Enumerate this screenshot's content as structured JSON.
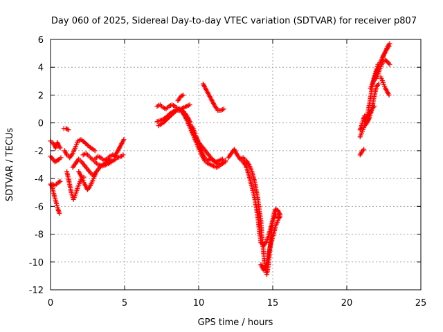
{
  "chart_data": {
    "type": "scatter",
    "title": "Day 060 of 2025, Sidereal Day-to-day VTEC variation (SDTVAR) for receiver p807",
    "xlabel": "GPS time / hours",
    "ylabel": "SDTVAR / TECUs",
    "xlim": [
      0,
      25
    ],
    "ylim": [
      -12,
      6
    ],
    "xticks": [
      "0",
      "5",
      "10",
      "15",
      "20",
      "25"
    ],
    "yticks": [
      "6",
      "4",
      "2",
      "0",
      "-2",
      "-4",
      "-6",
      "-8",
      "-10",
      "-12"
    ],
    "grid": true,
    "marker": "+",
    "color": "#ff0000",
    "tracks": [
      [
        [
          0.0,
          -1.3
        ],
        [
          0.2,
          -1.5
        ],
        [
          0.35,
          -1.8
        ],
        [
          0.45,
          -1.4
        ],
        [
          0.55,
          -1.6
        ],
        [
          0.65,
          -1.8
        ]
      ],
      [
        [
          0.0,
          -2.4
        ],
        [
          0.15,
          -2.6
        ],
        [
          0.3,
          -2.8
        ],
        [
          0.45,
          -2.7
        ],
        [
          0.6,
          -2.6
        ],
        [
          0.7,
          -2.5
        ]
      ],
      [
        [
          0.0,
          -4.4
        ],
        [
          0.1,
          -4.6
        ],
        [
          0.25,
          -5.2
        ],
        [
          0.4,
          -5.8
        ],
        [
          0.5,
          -6.2
        ],
        [
          0.6,
          -6.5
        ]
      ],
      [
        [
          0.1,
          -4.4
        ],
        [
          0.3,
          -4.5
        ],
        [
          0.5,
          -4.3
        ],
        [
          0.65,
          -4.2
        ]
      ],
      [
        [
          0.9,
          -0.4
        ],
        [
          1.05,
          -0.4
        ],
        [
          1.2,
          -0.5
        ]
      ],
      [
        [
          0.95,
          -2.0
        ],
        [
          1.1,
          -2.3
        ],
        [
          1.3,
          -2.5
        ],
        [
          1.5,
          -2.2
        ],
        [
          1.7,
          -1.7
        ],
        [
          1.85,
          -1.3
        ],
        [
          2.05,
          -1.2
        ],
        [
          2.3,
          -1.4
        ],
        [
          2.6,
          -1.7
        ],
        [
          3.0,
          -2.0
        ]
      ],
      [
        [
          1.1,
          -3.5
        ],
        [
          1.25,
          -4.2
        ],
        [
          1.4,
          -5.0
        ],
        [
          1.55,
          -5.5
        ],
        [
          1.7,
          -5.1
        ],
        [
          1.85,
          -4.6
        ],
        [
          2.05,
          -4.1
        ],
        [
          2.25,
          -3.9
        ]
      ],
      [
        [
          1.5,
          -3.2
        ],
        [
          1.7,
          -2.9
        ],
        [
          1.9,
          -2.6
        ],
        [
          2.1,
          -2.8
        ],
        [
          2.4,
          -3.2
        ],
        [
          2.7,
          -3.6
        ],
        [
          2.9,
          -3.8
        ],
        [
          3.1,
          -3.5
        ]
      ],
      [
        [
          1.9,
          -3.5
        ],
        [
          2.1,
          -3.9
        ],
        [
          2.3,
          -4.4
        ],
        [
          2.5,
          -4.8
        ],
        [
          2.7,
          -4.5
        ],
        [
          2.9,
          -4.0
        ],
        [
          3.1,
          -3.5
        ],
        [
          3.4,
          -3.1
        ],
        [
          3.7,
          -2.9
        ],
        [
          4.0,
          -2.6
        ]
      ],
      [
        [
          2.2,
          -2.3
        ],
        [
          2.4,
          -2.2
        ],
        [
          2.6,
          -2.4
        ],
        [
          2.8,
          -2.6
        ],
        [
          3.0,
          -2.8
        ],
        [
          3.2,
          -3.0
        ],
        [
          3.5,
          -3.1
        ],
        [
          3.8,
          -3.0
        ],
        [
          4.1,
          -2.8
        ],
        [
          4.4,
          -2.6
        ]
      ],
      [
        [
          3.0,
          -2.6
        ],
        [
          3.2,
          -2.4
        ],
        [
          3.4,
          -2.5
        ],
        [
          3.6,
          -2.7
        ],
        [
          3.8,
          -2.6
        ],
        [
          4.0,
          -2.4
        ],
        [
          4.2,
          -2.3
        ],
        [
          4.5,
          -2.5
        ],
        [
          4.8,
          -2.4
        ],
        [
          4.9,
          -2.3
        ]
      ],
      [
        [
          4.3,
          -2.4
        ],
        [
          4.5,
          -2.1
        ],
        [
          4.7,
          -1.7
        ],
        [
          4.85,
          -1.4
        ],
        [
          4.95,
          -1.2
        ]
      ],
      [
        [
          7.2,
          1.2
        ],
        [
          7.4,
          1.3
        ],
        [
          7.6,
          1.1
        ],
        [
          7.8,
          1.0
        ],
        [
          8.0,
          1.2
        ],
        [
          8.2,
          1.3
        ],
        [
          8.4,
          1.2
        ],
        [
          8.6,
          1.0
        ],
        [
          8.8,
          1.0
        ],
        [
          9.0,
          1.1
        ],
        [
          9.2,
          1.2
        ],
        [
          9.4,
          1.3
        ]
      ],
      [
        [
          7.2,
          0.1
        ],
        [
          7.5,
          0.2
        ],
        [
          7.8,
          0.4
        ],
        [
          8.1,
          0.7
        ],
        [
          8.4,
          0.9
        ],
        [
          8.7,
          1.0
        ],
        [
          9.0,
          0.8
        ],
        [
          9.2,
          0.5
        ],
        [
          9.4,
          0.1
        ]
      ],
      [
        [
          7.3,
          -0.2
        ],
        [
          7.6,
          0.0
        ],
        [
          7.9,
          0.3
        ],
        [
          8.2,
          0.6
        ],
        [
          8.5,
          0.9
        ],
        [
          8.8,
          0.9
        ],
        [
          9.0,
          0.6
        ],
        [
          9.2,
          0.2
        ],
        [
          9.4,
          -0.3
        ],
        [
          9.6,
          -0.8
        ],
        [
          9.8,
          -1.3
        ],
        [
          10.0,
          -1.8
        ]
      ],
      [
        [
          8.6,
          1.6
        ],
        [
          8.8,
          1.9
        ],
        [
          8.95,
          2.0
        ]
      ],
      [
        [
          9.2,
          0.5
        ],
        [
          9.4,
          0.0
        ],
        [
          9.6,
          -0.6
        ],
        [
          9.8,
          -1.2
        ],
        [
          10.0,
          -1.8
        ],
        [
          10.2,
          -2.3
        ],
        [
          10.4,
          -2.7
        ],
        [
          10.6,
          -2.9
        ],
        [
          10.8,
          -3.0
        ],
        [
          11.0,
          -3.1
        ],
        [
          11.2,
          -3.2
        ],
        [
          11.4,
          -3.1
        ],
        [
          11.6,
          -2.9
        ],
        [
          11.8,
          -2.7
        ]
      ],
      [
        [
          9.6,
          -0.3
        ],
        [
          9.8,
          -0.9
        ],
        [
          10.0,
          -1.5
        ],
        [
          10.2,
          -2.1
        ],
        [
          10.4,
          -2.5
        ],
        [
          10.6,
          -2.7
        ],
        [
          10.8,
          -2.6
        ],
        [
          11.0,
          -2.7
        ],
        [
          11.2,
          -2.8
        ],
        [
          11.4,
          -2.7
        ],
        [
          11.6,
          -2.6
        ]
      ],
      [
        [
          9.8,
          -1.0
        ],
        [
          10.0,
          -1.4
        ],
        [
          10.3,
          -1.8
        ],
        [
          10.6,
          -2.2
        ],
        [
          10.9,
          -2.6
        ],
        [
          11.2,
          -2.9
        ],
        [
          11.5,
          -3.0
        ],
        [
          11.8,
          -2.8
        ]
      ],
      [
        [
          10.3,
          2.8
        ],
        [
          10.5,
          2.4
        ],
        [
          10.7,
          2.0
        ],
        [
          10.9,
          1.6
        ],
        [
          11.1,
          1.2
        ],
        [
          11.3,
          0.9
        ],
        [
          11.5,
          0.9
        ],
        [
          11.7,
          1.0
        ]
      ],
      [
        [
          12.0,
          -2.5
        ],
        [
          12.2,
          -2.2
        ],
        [
          12.4,
          -1.9
        ],
        [
          12.6,
          -2.3
        ],
        [
          12.8,
          -2.6
        ],
        [
          13.0,
          -2.5
        ],
        [
          13.2,
          -2.7
        ],
        [
          13.4,
          -3.0
        ],
        [
          13.6,
          -3.5
        ],
        [
          13.8,
          -4.3
        ],
        [
          14.0,
          -5.5
        ],
        [
          14.2,
          -7.0
        ],
        [
          14.3,
          -8.5
        ],
        [
          14.4,
          -9.5
        ],
        [
          14.5,
          -10.5
        ],
        [
          14.6,
          -10.9
        ],
        [
          14.7,
          -10.3
        ],
        [
          14.8,
          -9.2
        ],
        [
          14.9,
          -8.0
        ],
        [
          15.0,
          -7.0
        ],
        [
          15.1,
          -6.5
        ],
        [
          15.2,
          -6.2
        ],
        [
          15.35,
          -6.3
        ],
        [
          15.5,
          -6.6
        ]
      ],
      [
        [
          12.8,
          -2.6
        ],
        [
          13.0,
          -2.8
        ],
        [
          13.2,
          -3.1
        ],
        [
          13.4,
          -3.8
        ],
        [
          13.6,
          -4.6
        ],
        [
          13.8,
          -5.5
        ],
        [
          14.0,
          -6.8
        ],
        [
          14.1,
          -7.8
        ],
        [
          14.2,
          -8.6
        ],
        [
          14.4,
          -8.8
        ],
        [
          14.6,
          -8.5
        ],
        [
          14.8,
          -7.8
        ],
        [
          15.0,
          -7.0
        ],
        [
          15.2,
          -6.6
        ],
        [
          15.4,
          -6.8
        ]
      ],
      [
        [
          14.2,
          -10.2
        ],
        [
          14.4,
          -10.6
        ],
        [
          14.6,
          -10.0
        ],
        [
          14.8,
          -9.0
        ],
        [
          15.0,
          -8.2
        ],
        [
          15.2,
          -7.4
        ],
        [
          15.4,
          -6.9
        ],
        [
          15.5,
          -6.7
        ]
      ],
      [
        [
          20.9,
          -2.3
        ],
        [
          21.0,
          -2.1
        ],
        [
          21.15,
          -1.9
        ]
      ],
      [
        [
          20.9,
          -0.5
        ],
        [
          21.0,
          -0.2
        ],
        [
          21.1,
          0.2
        ],
        [
          21.2,
          0.5
        ],
        [
          21.3,
          0.4
        ]
      ],
      [
        [
          20.9,
          -1.0
        ],
        [
          21.05,
          -0.6
        ],
        [
          21.2,
          -0.2
        ],
        [
          21.35,
          0.0
        ],
        [
          21.5,
          0.4
        ],
        [
          21.6,
          0.8
        ],
        [
          21.7,
          1.0
        ],
        [
          21.85,
          1.2
        ]
      ],
      [
        [
          21.2,
          0.1
        ],
        [
          21.4,
          0.6
        ],
        [
          21.55,
          1.5
        ],
        [
          21.7,
          2.5
        ],
        [
          21.85,
          3.3
        ],
        [
          22.0,
          3.8
        ],
        [
          22.1,
          4.2
        ]
      ],
      [
        [
          21.3,
          -0.1
        ],
        [
          21.5,
          0.3
        ],
        [
          21.7,
          1.0
        ],
        [
          21.85,
          1.9
        ],
        [
          22.0,
          2.6
        ],
        [
          22.15,
          2.8
        ]
      ],
      [
        [
          21.6,
          2.5
        ],
        [
          21.8,
          3.0
        ],
        [
          22.0,
          3.6
        ],
        [
          22.2,
          4.2
        ],
        [
          22.4,
          4.7
        ],
        [
          22.6,
          5.1
        ],
        [
          22.75,
          5.5
        ],
        [
          22.9,
          5.7
        ]
      ],
      [
        [
          22.0,
          3.2
        ],
        [
          22.2,
          3.8
        ],
        [
          22.4,
          4.3
        ],
        [
          22.6,
          4.5
        ],
        [
          22.75,
          4.4
        ],
        [
          22.9,
          4.2
        ]
      ],
      [
        [
          22.3,
          3.3
        ],
        [
          22.45,
          2.9
        ],
        [
          22.6,
          2.5
        ],
        [
          22.75,
          2.2
        ],
        [
          22.85,
          2.0
        ]
      ],
      [
        [
          22.4,
          4.6
        ],
        [
          22.55,
          5.0
        ],
        [
          22.7,
          5.3
        ],
        [
          22.85,
          5.5
        ]
      ]
    ]
  }
}
